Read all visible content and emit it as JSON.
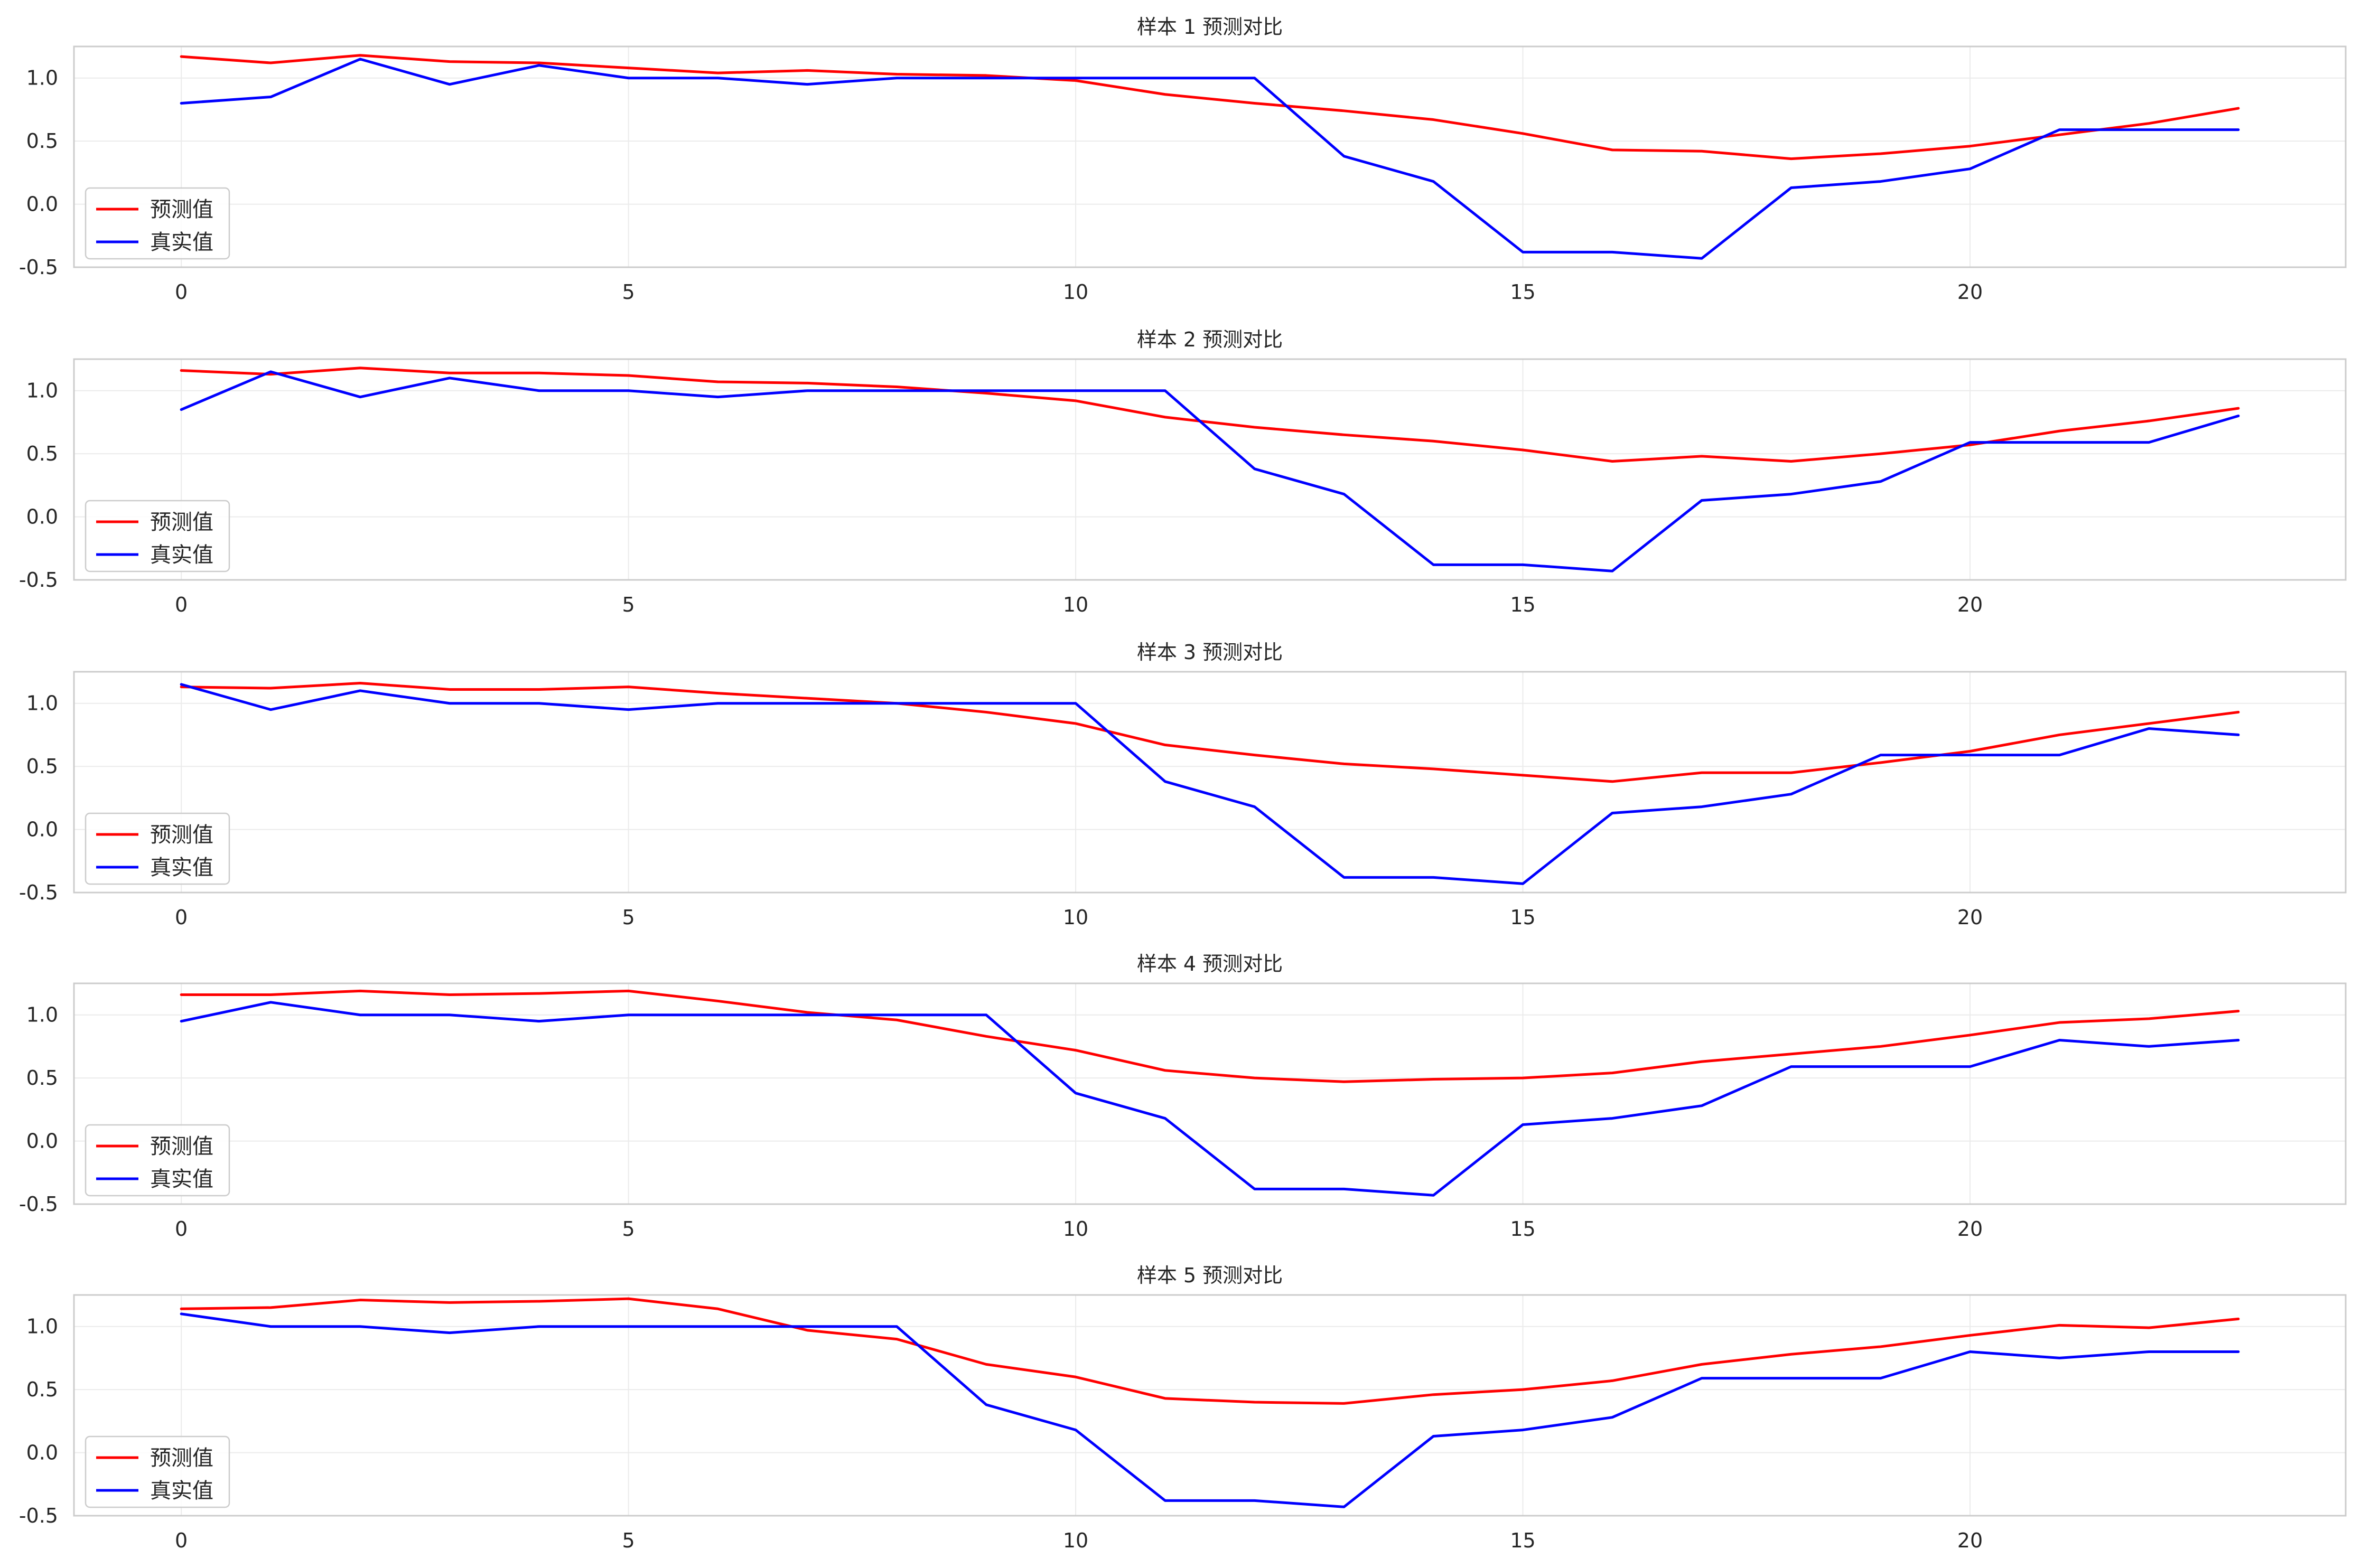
{
  "chart_data": [
    {
      "type": "line",
      "title": "样本 1 预测对比",
      "x": [
        0,
        1,
        2,
        3,
        4,
        5,
        6,
        7,
        8,
        9,
        10,
        11,
        12,
        13,
        14,
        15,
        16,
        17,
        18,
        19,
        20,
        21,
        22,
        23
      ],
      "xticks": [
        0,
        5,
        10,
        15,
        20
      ],
      "yticks": [
        -0.5,
        0.0,
        0.5,
        1.0
      ],
      "xlim": [
        -1.2,
        24.2
      ],
      "ylim": [
        -0.5,
        1.25
      ],
      "grid": true,
      "legend": "lower-left",
      "series": [
        {
          "name": "预测值",
          "color": "#ff0000",
          "values": [
            1.17,
            1.12,
            1.18,
            1.13,
            1.12,
            1.08,
            1.04,
            1.06,
            1.03,
            1.02,
            0.98,
            0.87,
            0.8,
            0.74,
            0.67,
            0.56,
            0.43,
            0.42,
            0.36,
            0.4,
            0.46,
            0.55,
            0.64,
            0.76
          ]
        },
        {
          "name": "真实值",
          "color": "#0000ff",
          "values": [
            0.8,
            0.85,
            1.15,
            0.95,
            1.1,
            1.0,
            1.0,
            0.95,
            1.0,
            1.0,
            1.0,
            1.0,
            1.0,
            0.38,
            0.18,
            -0.38,
            -0.38,
            -0.43,
            0.13,
            0.18,
            0.28,
            0.59,
            0.59,
            0.59
          ]
        }
      ]
    },
    {
      "type": "line",
      "title": "样本 2 预测对比",
      "x": [
        0,
        1,
        2,
        3,
        4,
        5,
        6,
        7,
        8,
        9,
        10,
        11,
        12,
        13,
        14,
        15,
        16,
        17,
        18,
        19,
        20,
        21,
        22,
        23
      ],
      "xticks": [
        0,
        5,
        10,
        15,
        20
      ],
      "yticks": [
        -0.5,
        0.0,
        0.5,
        1.0
      ],
      "xlim": [
        -1.2,
        24.2
      ],
      "ylim": [
        -0.5,
        1.25
      ],
      "grid": true,
      "legend": "lower-left",
      "series": [
        {
          "name": "预测值",
          "color": "#ff0000",
          "values": [
            1.16,
            1.13,
            1.18,
            1.14,
            1.14,
            1.12,
            1.07,
            1.06,
            1.03,
            0.98,
            0.92,
            0.79,
            0.71,
            0.65,
            0.6,
            0.53,
            0.44,
            0.48,
            0.44,
            0.5,
            0.57,
            0.68,
            0.76,
            0.86
          ]
        },
        {
          "name": "真实值",
          "color": "#0000ff",
          "values": [
            0.85,
            1.15,
            0.95,
            1.1,
            1.0,
            1.0,
            0.95,
            1.0,
            1.0,
            1.0,
            1.0,
            1.0,
            0.38,
            0.18,
            -0.38,
            -0.38,
            -0.43,
            0.13,
            0.18,
            0.28,
            0.59,
            0.59,
            0.59,
            0.8
          ]
        }
      ]
    },
    {
      "type": "line",
      "title": "样本 3 预测对比",
      "x": [
        0,
        1,
        2,
        3,
        4,
        5,
        6,
        7,
        8,
        9,
        10,
        11,
        12,
        13,
        14,
        15,
        16,
        17,
        18,
        19,
        20,
        21,
        22,
        23
      ],
      "xticks": [
        0,
        5,
        10,
        15,
        20
      ],
      "yticks": [
        -0.5,
        0.0,
        0.5,
        1.0
      ],
      "xlim": [
        -1.2,
        24.2
      ],
      "ylim": [
        -0.5,
        1.25
      ],
      "grid": true,
      "legend": "lower-left",
      "series": [
        {
          "name": "预测值",
          "color": "#ff0000",
          "values": [
            1.13,
            1.12,
            1.16,
            1.11,
            1.11,
            1.13,
            1.08,
            1.04,
            1.0,
            0.93,
            0.84,
            0.67,
            0.59,
            0.52,
            0.48,
            0.43,
            0.38,
            0.45,
            0.45,
            0.53,
            0.62,
            0.75,
            0.84,
            0.93
          ]
        },
        {
          "name": "真实值",
          "color": "#0000ff",
          "values": [
            1.15,
            0.95,
            1.1,
            1.0,
            1.0,
            0.95,
            1.0,
            1.0,
            1.0,
            1.0,
            1.0,
            0.38,
            0.18,
            -0.38,
            -0.38,
            -0.43,
            0.13,
            0.18,
            0.28,
            0.59,
            0.59,
            0.59,
            0.8,
            0.75
          ]
        }
      ]
    },
    {
      "type": "line",
      "title": "样本 4 预测对比",
      "x": [
        0,
        1,
        2,
        3,
        4,
        5,
        6,
        7,
        8,
        9,
        10,
        11,
        12,
        13,
        14,
        15,
        16,
        17,
        18,
        19,
        20,
        21,
        22,
        23
      ],
      "xticks": [
        0,
        5,
        10,
        15,
        20
      ],
      "yticks": [
        -0.5,
        0.0,
        0.5,
        1.0
      ],
      "xlim": [
        -1.2,
        24.2
      ],
      "ylim": [
        -0.5,
        1.25
      ],
      "grid": true,
      "legend": "lower-left",
      "series": [
        {
          "name": "预测值",
          "color": "#ff0000",
          "values": [
            1.16,
            1.16,
            1.19,
            1.16,
            1.17,
            1.19,
            1.11,
            1.02,
            0.96,
            0.83,
            0.72,
            0.56,
            0.5,
            0.47,
            0.49,
            0.5,
            0.54,
            0.63,
            0.69,
            0.75,
            0.84,
            0.94,
            0.97,
            1.03
          ]
        },
        {
          "name": "真实值",
          "color": "#0000ff",
          "values": [
            0.95,
            1.1,
            1.0,
            1.0,
            0.95,
            1.0,
            1.0,
            1.0,
            1.0,
            1.0,
            0.38,
            0.18,
            -0.38,
            -0.38,
            -0.43,
            0.13,
            0.18,
            0.28,
            0.59,
            0.59,
            0.59,
            0.8,
            0.75,
            0.8
          ]
        }
      ]
    },
    {
      "type": "line",
      "title": "样本 5 预测对比",
      "x": [
        0,
        1,
        2,
        3,
        4,
        5,
        6,
        7,
        8,
        9,
        10,
        11,
        12,
        13,
        14,
        15,
        16,
        17,
        18,
        19,
        20,
        21,
        22,
        23
      ],
      "xticks": [
        0,
        5,
        10,
        15,
        20
      ],
      "yticks": [
        -0.5,
        0.0,
        0.5,
        1.0
      ],
      "xlim": [
        -1.2,
        24.2
      ],
      "ylim": [
        -0.5,
        1.25
      ],
      "grid": true,
      "legend": "lower-left",
      "series": [
        {
          "name": "预测值",
          "color": "#ff0000",
          "values": [
            1.14,
            1.15,
            1.21,
            1.19,
            1.2,
            1.22,
            1.14,
            0.97,
            0.9,
            0.7,
            0.6,
            0.43,
            0.4,
            0.39,
            0.46,
            0.5,
            0.57,
            0.7,
            0.78,
            0.84,
            0.93,
            1.01,
            0.99,
            1.06
          ]
        },
        {
          "name": "真实值",
          "color": "#0000ff",
          "values": [
            1.1,
            1.0,
            1.0,
            0.95,
            1.0,
            1.0,
            1.0,
            1.0,
            1.0,
            0.38,
            0.18,
            -0.38,
            -0.38,
            -0.43,
            0.13,
            0.18,
            0.28,
            0.59,
            0.59,
            0.59,
            0.8,
            0.75,
            0.8,
            0.8
          ]
        }
      ]
    }
  ]
}
